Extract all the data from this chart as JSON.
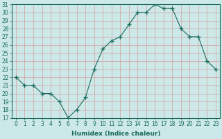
{
  "humidex": [
    22,
    21,
    21,
    20,
    20,
    19,
    17,
    18,
    19.5,
    23,
    25.5,
    26.5,
    27,
    28.5,
    30,
    30,
    31,
    30.5,
    30.5,
    28,
    27,
    27,
    24,
    23
  ],
  "x": [
    0,
    1,
    2,
    3,
    4,
    5,
    6,
    7,
    8,
    9,
    10,
    11,
    12,
    13,
    14,
    15,
    16,
    17,
    18,
    19,
    20,
    21,
    22,
    23
  ],
  "ylim": [
    17,
    31
  ],
  "xlim": [
    -0.5,
    23.5
  ],
  "yticks": [
    17,
    18,
    19,
    20,
    21,
    22,
    23,
    24,
    25,
    26,
    27,
    28,
    29,
    30,
    31
  ],
  "xticks": [
    0,
    1,
    2,
    3,
    4,
    5,
    6,
    7,
    8,
    9,
    10,
    11,
    12,
    13,
    14,
    15,
    16,
    17,
    18,
    19,
    20,
    21,
    22,
    23
  ],
  "xlabel": "Humidex (Indice chaleur)",
  "line_color": "#1a6b5a",
  "marker_color": "#1a6b5a",
  "bg_color": "#cce8e8",
  "grid_color": "#d4a0a0",
  "tick_color": "#1a6b5a",
  "font_size": 5.5,
  "xlabel_fontsize": 6.5
}
